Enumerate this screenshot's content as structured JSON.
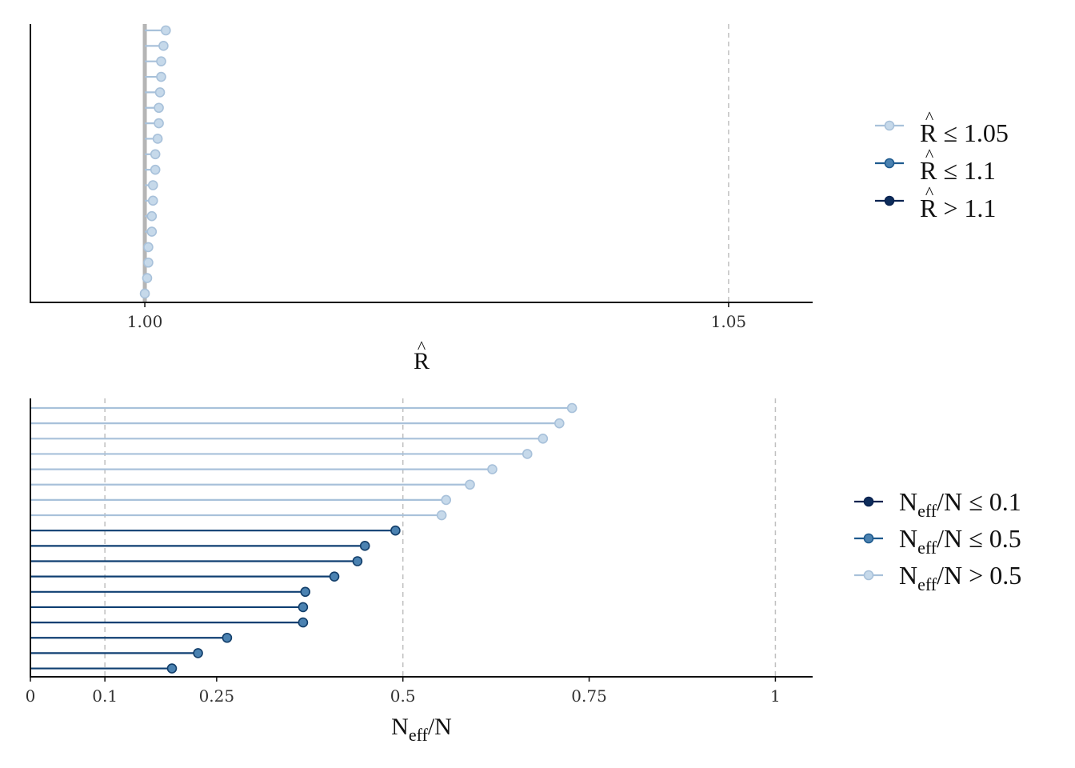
{
  "colors": {
    "light": "#a8c1da",
    "light_fill": "#c6d9ea",
    "mid": "#1e5a8e",
    "mid_fill": "#4b82b1",
    "dark": "#0a2350",
    "dark_fill": "#0d2c5b",
    "rhat_ref_line": "#b5b5b5",
    "grid_dash": "#c0c0c0",
    "axis": "#111111"
  },
  "chart_data": [
    {
      "type": "lollipop",
      "xlabel": "R̂",
      "xlabel_base": "R",
      "xlabel_hat": "^",
      "xlim": [
        0.9902,
        1.0572
      ],
      "x_ticks": [
        1.0,
        1.05
      ],
      "x_tick_labels": [
        "1.00",
        "1.05"
      ],
      "reference_lines": [
        1.05
      ],
      "baseline": 1.0,
      "values": [
        1.0018,
        1.0016,
        1.0014,
        1.0014,
        1.0013,
        1.0012,
        1.0012,
        1.0011,
        1.0009,
        1.0009,
        1.0007,
        1.0007,
        1.0006,
        1.0006,
        1.0003,
        1.0003,
        1.0002,
        1.0
      ],
      "series_class": "light",
      "legend": {
        "placement": "right",
        "items": [
          {
            "base": "R",
            "hat": "^",
            "text": " ≤ 1.05",
            "color_key": "light"
          },
          {
            "base": "R",
            "hat": "^",
            "text": " ≤ 1.1",
            "color_key": "mid"
          },
          {
            "base": "R",
            "hat": "^",
            "text": " > 1.1",
            "color_key": "dark"
          }
        ]
      }
    },
    {
      "type": "lollipop",
      "xlabel_main": "N",
      "xlabel_sub": "eff",
      "xlabel_tail": "/N",
      "xlim": [
        0,
        1.05
      ],
      "x_ticks": [
        0,
        0.1,
        0.25,
        0.5,
        0.75,
        1
      ],
      "x_tick_labels": [
        "0",
        "0.1",
        "0.25",
        "0.5",
        "0.75",
        "1"
      ],
      "reference_lines": [
        0.1,
        0.5,
        1
      ],
      "baseline": 0,
      "values": [
        0.727,
        0.71,
        0.688,
        0.667,
        0.62,
        0.59,
        0.558,
        0.552,
        0.49,
        0.449,
        0.439,
        0.408,
        0.369,
        0.366,
        0.366,
        0.264,
        0.225,
        0.19
      ],
      "classes": [
        "light",
        "light",
        "light",
        "light",
        "light",
        "light",
        "light",
        "light",
        "mid",
        "mid",
        "mid",
        "mid",
        "mid",
        "mid",
        "mid",
        "mid",
        "mid",
        "mid"
      ],
      "legend": {
        "placement": "right",
        "items": [
          {
            "main": "N",
            "sub": "eff",
            "text": "/N ≤ 0.1",
            "color_key": "dark"
          },
          {
            "main": "N",
            "sub": "eff",
            "text": "/N ≤ 0.5",
            "color_key": "mid"
          },
          {
            "main": "N",
            "sub": "eff",
            "text": "/N > 0.5",
            "color_key": "light"
          }
        ]
      }
    }
  ]
}
